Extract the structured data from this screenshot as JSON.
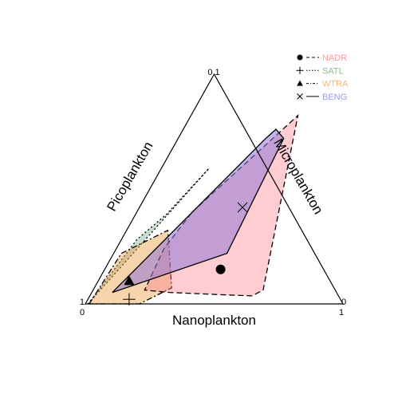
{
  "chart_data": {
    "type": "ternary",
    "axes": {
      "bottom": {
        "label": "Nanoplankton",
        "ticks": [
          "0",
          "1"
        ]
      },
      "left": {
        "label": "Picoplankton",
        "ticks": [
          "1",
          "0"
        ]
      },
      "right": {
        "label": "Microplankton",
        "ticks": [
          "0",
          "1"
        ]
      }
    },
    "legend_position": "top-right",
    "series": [
      {
        "name": "NADR",
        "color": "#FF9999",
        "fill": "rgba(255,128,140,0.40)",
        "line": "dashed",
        "marker": "circle",
        "marker_label": "●",
        "centroid": {
          "nano": 0.45,
          "micro": 0.15
        },
        "hull": [
          {
            "nano": 0.215,
            "micro": 0.4
          },
          {
            "nano": 0.415,
            "micro": 0.82
          },
          {
            "nano": 0.66,
            "micro": 0.06
          },
          {
            "nano": 0.63,
            "micro": 0.035
          },
          {
            "nano": 0.51,
            "micro": 0.04
          },
          {
            "nano": 0.3,
            "micro": 0.05
          },
          {
            "nano": 0.2,
            "micro": 0.06
          },
          {
            "nano": 0.185,
            "micro": 0.24
          }
        ]
      },
      {
        "name": "SATL",
        "color": "#8FBC8F",
        "fill": "rgba(120,170,130,0.40)",
        "line": "dotted",
        "marker": "plus",
        "marker_label": "+",
        "centroid": {
          "nano": 0.16,
          "micro": 0.02
        },
        "hull": [
          {
            "nano": 0.01,
            "micro": 0.0
          },
          {
            "nano": 0.185,
            "micro": 0.59
          },
          {
            "nano": 0.12,
            "micro": 0.39
          },
          {
            "nano": 0.06,
            "micro": 0.28
          },
          {
            "nano": 0.02,
            "micro": 0.05
          }
        ]
      },
      {
        "name": "WTRA",
        "color": "#F5B97A",
        "fill": "rgba(235,160,70,0.45)",
        "line": "dotdash",
        "marker": "triangle",
        "marker_label": "▲",
        "centroid": {
          "nano": 0.12,
          "micro": 0.1
        },
        "hull": [
          {
            "nano": 0.015,
            "micro": 0.0
          },
          {
            "nano": 0.03,
            "micro": 0.22
          },
          {
            "nano": 0.16,
            "micro": 0.32
          },
          {
            "nano": 0.3,
            "micro": 0.07
          },
          {
            "nano": 0.21,
            "micro": 0.0
          }
        ]
      },
      {
        "name": "BENG",
        "color": "#9999FF",
        "fill": "rgba(145,120,215,0.55)",
        "line": "solid",
        "marker": "cross",
        "marker_label": "×",
        "centroid": {
          "nano": 0.4,
          "micro": 0.42
        },
        "hull": [
          {
            "nano": 0.34,
            "micro": 0.72
          },
          {
            "nano": 0.36,
            "micro": 0.76
          },
          {
            "nano": 0.41,
            "micro": 0.72
          },
          {
            "nano": 0.44,
            "micro": 0.22
          },
          {
            "nano": 0.08,
            "micro": 0.05
          }
        ]
      }
    ]
  }
}
